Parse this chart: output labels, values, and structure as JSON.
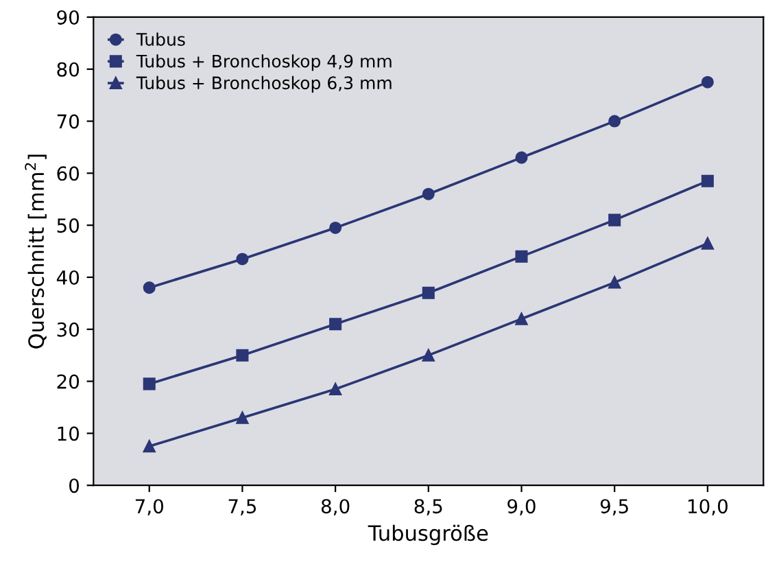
{
  "chart_data": {
    "type": "line",
    "xlabel": "Tubusgröße",
    "ylabel": "Querschnitt [mm$^{2}$]",
    "x": [
      7.0,
      7.5,
      8.0,
      8.5,
      9.0,
      9.5,
      10.0
    ],
    "series": [
      {
        "name": "Tubus",
        "color": "#2b3676",
        "marker": "circle",
        "values": [
          38,
          43.5,
          49.5,
          56,
          63,
          70,
          77.5
        ]
      },
      {
        "name": "Tubus + Bronchoskop 4,9 mm",
        "color": "#2b3676",
        "marker": "square",
        "values": [
          19.5,
          25,
          31,
          37,
          44,
          51,
          58.5
        ]
      },
      {
        "name": "Tubus + Bronchoskop 6,3 mm",
        "color": "#2b3676",
        "marker": "triangle",
        "values": [
          7.5,
          13,
          18.5,
          25,
          32,
          39,
          46.5
        ]
      }
    ],
    "xlim": [
      6.7,
      10.3
    ],
    "xticks": [
      {
        "value": 7.0,
        "label": "7,0"
      },
      {
        "value": 7.5,
        "label": "7,5"
      },
      {
        "value": 8.0,
        "label": "8,0"
      },
      {
        "value": 8.5,
        "label": "8,5"
      },
      {
        "value": 9.0,
        "label": "9,0"
      },
      {
        "value": 9.5,
        "label": "9,5"
      },
      {
        "value": 10.0,
        "label": "10,0"
      }
    ],
    "ylim": [
      0,
      90
    ],
    "yticks": [
      0,
      10,
      20,
      30,
      40,
      50,
      60,
      70,
      80,
      90
    ],
    "grid": false,
    "legend": "top left",
    "line_style": "solid"
  }
}
